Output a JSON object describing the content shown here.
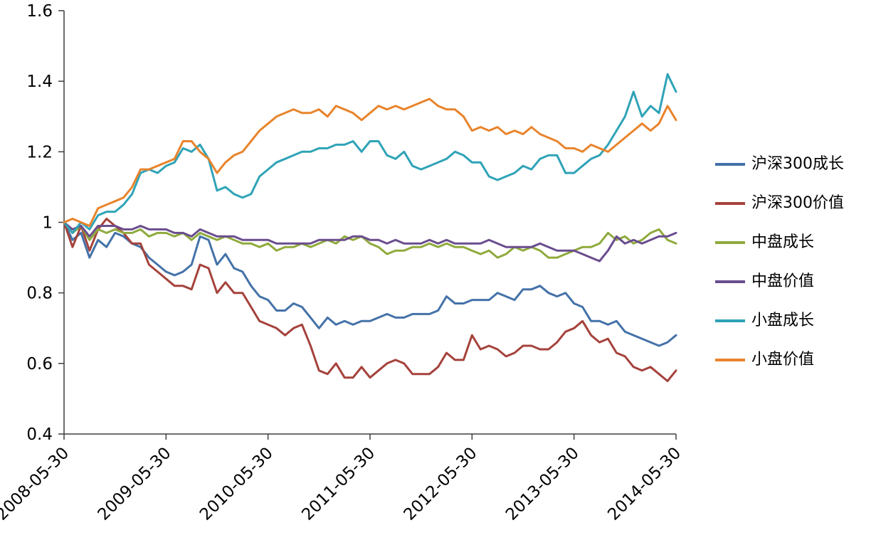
{
  "chart_data": {
    "type": "line",
    "title": "",
    "xlabel": "",
    "ylabel": "",
    "grid": false,
    "legend_position": "right",
    "axis_color": "#3f3f3f",
    "text_color": "#000000",
    "ylim": [
      0.4,
      1.6
    ],
    "y_tick_labels": [
      "0.4",
      "0.6",
      "0.8",
      "1",
      "1.2",
      "1.4",
      "1.6"
    ],
    "y_tick_values": [
      0.4,
      0.6,
      0.8,
      1.0,
      1.2,
      1.4,
      1.6
    ],
    "x_tick_labels": [
      "2008-05-30",
      "2009-05-30",
      "2010-05-30",
      "2011-05-30",
      "2012-05-30",
      "2013-05-30",
      "2014-05-30"
    ],
    "x_tick_indices": [
      0,
      12,
      24,
      36,
      48,
      60,
      72
    ],
    "n_points": 73,
    "x_unit": "monthly from 2008-05-30 to 2014-05-30",
    "series": [
      {
        "key": "csi300-growth",
        "name": "沪深300成长",
        "color": "#4472a8",
        "values": [
          1.0,
          0.95,
          0.97,
          0.9,
          0.95,
          0.93,
          0.97,
          0.96,
          0.94,
          0.93,
          0.9,
          0.88,
          0.86,
          0.85,
          0.86,
          0.88,
          0.96,
          0.95,
          0.88,
          0.91,
          0.87,
          0.86,
          0.82,
          0.79,
          0.78,
          0.75,
          0.75,
          0.77,
          0.76,
          0.73,
          0.7,
          0.73,
          0.71,
          0.72,
          0.71,
          0.72,
          0.72,
          0.73,
          0.74,
          0.73,
          0.73,
          0.74,
          0.74,
          0.74,
          0.75,
          0.79,
          0.77,
          0.77,
          0.78,
          0.78,
          0.78,
          0.8,
          0.79,
          0.78,
          0.81,
          0.81,
          0.82,
          0.8,
          0.79,
          0.8,
          0.77,
          0.76,
          0.72,
          0.72,
          0.71,
          0.72,
          0.69,
          0.68,
          0.67,
          0.66,
          0.65,
          0.66,
          0.68
        ]
      },
      {
        "key": "csi300-value",
        "name": "沪深300价值",
        "color": "#a5423c",
        "values": [
          1.0,
          0.93,
          0.99,
          0.92,
          0.98,
          1.01,
          0.99,
          0.97,
          0.94,
          0.94,
          0.88,
          0.86,
          0.84,
          0.82,
          0.82,
          0.81,
          0.88,
          0.87,
          0.8,
          0.83,
          0.8,
          0.8,
          0.76,
          0.72,
          0.71,
          0.7,
          0.68,
          0.7,
          0.71,
          0.65,
          0.58,
          0.57,
          0.6,
          0.56,
          0.56,
          0.59,
          0.56,
          0.58,
          0.6,
          0.61,
          0.6,
          0.57,
          0.57,
          0.57,
          0.59,
          0.63,
          0.61,
          0.61,
          0.68,
          0.64,
          0.65,
          0.64,
          0.62,
          0.63,
          0.65,
          0.65,
          0.64,
          0.64,
          0.66,
          0.69,
          0.7,
          0.72,
          0.68,
          0.66,
          0.67,
          0.63,
          0.62,
          0.59,
          0.58,
          0.59,
          0.57,
          0.55,
          0.58
        ]
      },
      {
        "key": "midcap-growth",
        "name": "中盘成长",
        "color": "#8faa3c",
        "values": [
          1.0,
          0.97,
          0.99,
          0.95,
          0.98,
          0.97,
          0.98,
          0.97,
          0.97,
          0.98,
          0.96,
          0.97,
          0.97,
          0.96,
          0.97,
          0.95,
          0.97,
          0.96,
          0.95,
          0.96,
          0.95,
          0.94,
          0.94,
          0.93,
          0.94,
          0.92,
          0.93,
          0.93,
          0.94,
          0.93,
          0.94,
          0.95,
          0.94,
          0.96,
          0.95,
          0.96,
          0.94,
          0.93,
          0.91,
          0.92,
          0.92,
          0.93,
          0.93,
          0.94,
          0.93,
          0.94,
          0.93,
          0.93,
          0.92,
          0.91,
          0.92,
          0.9,
          0.91,
          0.93,
          0.92,
          0.93,
          0.92,
          0.9,
          0.9,
          0.91,
          0.92,
          0.93,
          0.93,
          0.94,
          0.97,
          0.95,
          0.96,
          0.94,
          0.95,
          0.97,
          0.98,
          0.95,
          0.94
        ]
      },
      {
        "key": "midcap-value",
        "name": "中盘价值",
        "color": "#6a4d8e",
        "values": [
          1.0,
          0.98,
          0.99,
          0.96,
          0.99,
          0.99,
          0.99,
          0.98,
          0.98,
          0.99,
          0.98,
          0.98,
          0.98,
          0.97,
          0.97,
          0.96,
          0.98,
          0.97,
          0.96,
          0.96,
          0.96,
          0.95,
          0.95,
          0.95,
          0.95,
          0.94,
          0.94,
          0.94,
          0.94,
          0.94,
          0.95,
          0.95,
          0.95,
          0.95,
          0.96,
          0.96,
          0.95,
          0.95,
          0.94,
          0.95,
          0.94,
          0.94,
          0.94,
          0.95,
          0.94,
          0.95,
          0.94,
          0.94,
          0.94,
          0.94,
          0.95,
          0.94,
          0.93,
          0.93,
          0.93,
          0.93,
          0.94,
          0.93,
          0.92,
          0.92,
          0.92,
          0.91,
          0.9,
          0.89,
          0.92,
          0.96,
          0.94,
          0.95,
          0.94,
          0.95,
          0.96,
          0.96,
          0.97
        ]
      },
      {
        "key": "smallcap-growth",
        "name": "小盘成长",
        "color": "#2fa3b7",
        "values": [
          1.0,
          0.97,
          1.0,
          0.98,
          1.02,
          1.03,
          1.03,
          1.05,
          1.08,
          1.14,
          1.15,
          1.14,
          1.16,
          1.17,
          1.21,
          1.2,
          1.22,
          1.18,
          1.09,
          1.1,
          1.08,
          1.07,
          1.08,
          1.13,
          1.15,
          1.17,
          1.18,
          1.19,
          1.2,
          1.2,
          1.21,
          1.21,
          1.22,
          1.22,
          1.23,
          1.2,
          1.23,
          1.23,
          1.19,
          1.18,
          1.2,
          1.16,
          1.15,
          1.16,
          1.17,
          1.18,
          1.2,
          1.19,
          1.17,
          1.17,
          1.13,
          1.12,
          1.13,
          1.14,
          1.16,
          1.15,
          1.18,
          1.19,
          1.19,
          1.14,
          1.14,
          1.16,
          1.18,
          1.19,
          1.22,
          1.26,
          1.3,
          1.37,
          1.3,
          1.33,
          1.31,
          1.42,
          1.37
        ]
      },
      {
        "key": "smallcap-value",
        "name": "小盘价值",
        "color": "#e8842c",
        "values": [
          1.0,
          1.01,
          1.0,
          0.99,
          1.04,
          1.05,
          1.06,
          1.07,
          1.1,
          1.15,
          1.15,
          1.16,
          1.17,
          1.18,
          1.23,
          1.23,
          1.2,
          1.18,
          1.14,
          1.17,
          1.19,
          1.2,
          1.23,
          1.26,
          1.28,
          1.3,
          1.31,
          1.32,
          1.31,
          1.31,
          1.32,
          1.3,
          1.33,
          1.32,
          1.31,
          1.29,
          1.31,
          1.33,
          1.32,
          1.33,
          1.32,
          1.33,
          1.34,
          1.35,
          1.33,
          1.32,
          1.32,
          1.3,
          1.26,
          1.27,
          1.26,
          1.27,
          1.25,
          1.26,
          1.25,
          1.27,
          1.25,
          1.24,
          1.23,
          1.21,
          1.21,
          1.2,
          1.22,
          1.21,
          1.2,
          1.22,
          1.24,
          1.26,
          1.28,
          1.26,
          1.28,
          1.33,
          1.29
        ]
      }
    ]
  }
}
